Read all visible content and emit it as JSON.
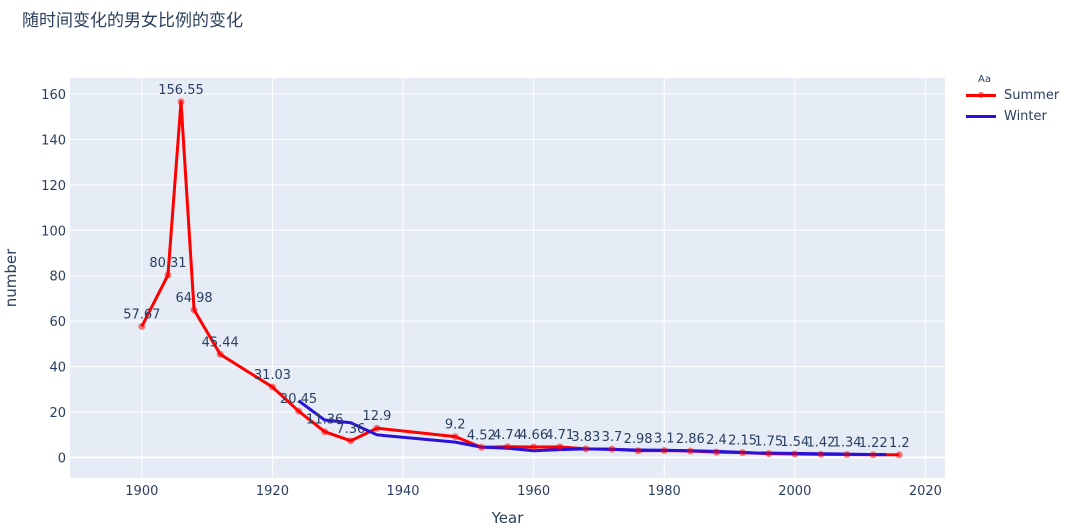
{
  "chart_data": {
    "type": "line",
    "title": "随时间变化的男女比例的变化",
    "xlabel": "Year",
    "ylabel": "number",
    "xlim": [
      1889,
      2023
    ],
    "ylim": [
      -9,
      167
    ],
    "x_ticks": [
      1900,
      1920,
      1940,
      1960,
      1980,
      2000,
      2020
    ],
    "y_ticks": [
      0,
      20,
      40,
      60,
      80,
      100,
      120,
      140,
      160
    ],
    "legend_title": "Aa",
    "legend_position": "top-right",
    "grid": true,
    "series": [
      {
        "name": "Summer",
        "color": "#ff0000",
        "x": [
          1900,
          1904,
          1906,
          1908,
          1912,
          1920,
          1924,
          1928,
          1932,
          1936,
          1948,
          1952,
          1956,
          1960,
          1964,
          1968,
          1972,
          1976,
          1980,
          1984,
          1988,
          1992,
          1996,
          2000,
          2004,
          2008,
          2012,
          2016
        ],
        "y": [
          57.67,
          80.31,
          156.55,
          64.98,
          45.44,
          31.03,
          20.45,
          11.36,
          7.36,
          12.9,
          9.2,
          4.52,
          4.74,
          4.66,
          4.71,
          3.83,
          3.7,
          2.98,
          3.1,
          2.86,
          2.4,
          2.15,
          1.75,
          1.54,
          1.42,
          1.34,
          1.22,
          1.2
        ],
        "labels": [
          "57.67",
          "80.31",
          "156.55",
          "64.98",
          "45.44",
          "31.03",
          "20.45",
          "11.36",
          "7.36",
          "12.9",
          "9.2",
          "4.52",
          "4.74",
          "4.66",
          "4.71",
          "3.83",
          "3.7",
          "2.98",
          "3.1",
          "2.86",
          "2.4",
          "2.15",
          "1.75",
          "1.54",
          "1.42",
          "1.34",
          "1.22",
          "1.2"
        ]
      },
      {
        "name": "Winter",
        "color": "#2a10d8",
        "x": [
          1924,
          1928,
          1932,
          1936,
          1948,
          1952,
          1956,
          1960,
          1964,
          1968,
          1972,
          1976,
          1980,
          1984,
          1988,
          1992,
          1994,
          1998,
          2002,
          2006,
          2010,
          2014
        ],
        "y": [
          25,
          16.5,
          15.3,
          10,
          6.8,
          4.6,
          4.1,
          3.0,
          3.5,
          3.8,
          3.6,
          3.3,
          3.2,
          3.0,
          2.7,
          2.3,
          2.0,
          1.9,
          1.7,
          1.6,
          1.4,
          1.3
        ]
      }
    ]
  }
}
